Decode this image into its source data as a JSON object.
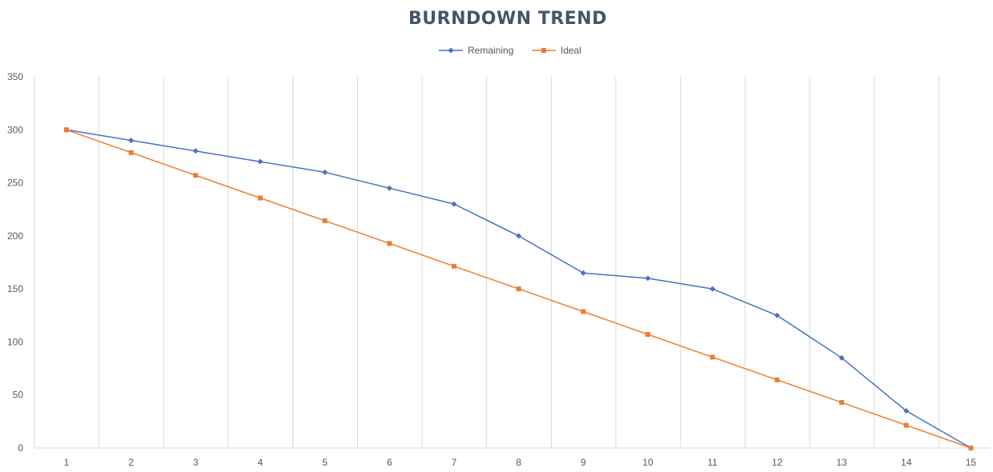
{
  "chart_data": {
    "type": "line",
    "title": "BURNDOWN TREND",
    "xlabel": "",
    "ylabel": "",
    "x": [
      1,
      2,
      3,
      4,
      5,
      6,
      7,
      8,
      9,
      10,
      11,
      12,
      13,
      14,
      15
    ],
    "ylim": [
      0,
      350
    ],
    "y_ticks": [
      0,
      50,
      100,
      150,
      200,
      250,
      300,
      350
    ],
    "grid": "vertical",
    "legend_position": "top",
    "series": [
      {
        "name": "Remaining",
        "color": "#4472C4",
        "marker": "diamond",
        "values": [
          300,
          290,
          280,
          270,
          260,
          245,
          230,
          200,
          165,
          160,
          150,
          125,
          85,
          35,
          0
        ]
      },
      {
        "name": "Ideal",
        "color": "#ED7D31",
        "marker": "square",
        "values": [
          300,
          278.6,
          257.1,
          235.7,
          214.3,
          192.9,
          171.4,
          150,
          128.6,
          107.1,
          85.7,
          64.3,
          42.9,
          21.4,
          0
        ]
      }
    ]
  }
}
